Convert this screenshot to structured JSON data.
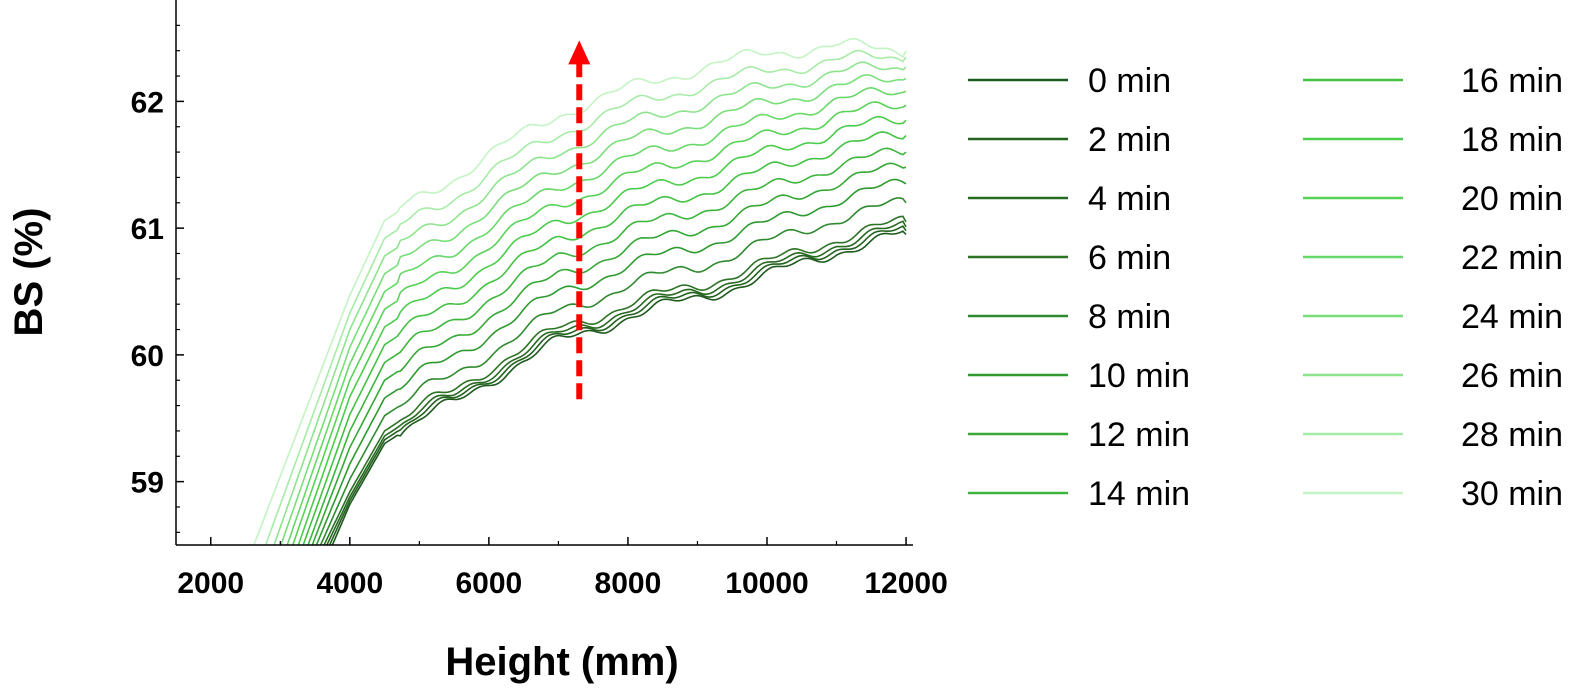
{
  "chart_data": {
    "type": "line",
    "xlabel": "Height (mm)",
    "ylabel": "BS (%)",
    "xlim": [
      1500,
      12100
    ],
    "ylim": [
      58.5,
      62.8
    ],
    "xticks": [
      2000,
      4000,
      6000,
      8000,
      10000,
      12000
    ],
    "yticks": [
      59,
      60,
      61,
      62
    ],
    "grid": false,
    "legend_position": "right",
    "annotation": {
      "type": "arrow",
      "direction": "up",
      "color": "#ff0000",
      "x": 7300,
      "y_from": 59.65,
      "y_to": 62.45
    },
    "series": [
      {
        "name": "0 min",
        "color": "#1f5a1f",
        "x": [
          3750,
          4000,
          4500,
          5000,
          5500,
          6000,
          7000,
          8000,
          9000,
          10000,
          11000,
          12000
        ],
        "values": [
          58.5,
          58.82,
          59.3,
          59.48,
          59.62,
          59.8,
          60.1,
          60.3,
          60.45,
          60.62,
          60.82,
          60.95
        ]
      },
      {
        "name": "2 min",
        "color": "#23621f",
        "x": [
          3710,
          4000,
          4500,
          5000,
          5500,
          6000,
          7000,
          8000,
          9000,
          10000,
          11000,
          12000
        ],
        "values": [
          58.5,
          58.85,
          59.33,
          59.51,
          59.65,
          59.83,
          60.13,
          60.33,
          60.48,
          60.65,
          60.85,
          60.98
        ]
      },
      {
        "name": "4 min",
        "color": "#286a22",
        "x": [
          3670,
          4000,
          4500,
          5000,
          5500,
          6000,
          7000,
          8000,
          9000,
          10000,
          11000,
          12000
        ],
        "values": [
          58.5,
          58.88,
          59.36,
          59.54,
          59.68,
          59.86,
          60.16,
          60.36,
          60.51,
          60.68,
          60.88,
          61.01
        ]
      },
      {
        "name": "6 min",
        "color": "#2d7326",
        "x": [
          3630,
          4000,
          4500,
          5000,
          5500,
          6000,
          7000,
          8000,
          9000,
          10000,
          11000,
          12000
        ],
        "values": [
          58.5,
          58.92,
          59.4,
          59.58,
          59.72,
          59.9,
          60.2,
          60.4,
          60.55,
          60.72,
          60.92,
          61.05
        ]
      },
      {
        "name": "8 min",
        "color": "#2f8a2f",
        "x": [
          3580,
          4000,
          4500,
          5000,
          5500,
          6000,
          7000,
          8000,
          9000,
          10000,
          11000,
          12000
        ],
        "values": [
          58.5,
          59.02,
          59.52,
          59.7,
          59.84,
          60.02,
          60.34,
          60.55,
          60.7,
          60.88,
          61.08,
          61.2
        ]
      },
      {
        "name": "10 min",
        "color": "#2f9a2f",
        "x": [
          3520,
          4000,
          4500,
          5000,
          5500,
          6000,
          7000,
          8000,
          9000,
          10000,
          11000,
          12000
        ],
        "values": [
          58.5,
          59.14,
          59.66,
          59.84,
          59.99,
          60.17,
          60.49,
          60.7,
          60.86,
          61.03,
          61.23,
          61.35
        ]
      },
      {
        "name": "12 min",
        "color": "#35a835",
        "x": [
          3460,
          4000,
          4500,
          5000,
          5500,
          6000,
          7000,
          8000,
          9000,
          10000,
          11000,
          12000
        ],
        "values": [
          58.5,
          59.27,
          59.8,
          59.98,
          60.13,
          60.31,
          60.63,
          60.84,
          61.0,
          61.17,
          61.37,
          61.48
        ]
      },
      {
        "name": "14 min",
        "color": "#3db53d",
        "x": [
          3400,
          4000,
          4500,
          5000,
          5500,
          6000,
          7000,
          8000,
          9000,
          10000,
          11000,
          12000
        ],
        "values": [
          58.5,
          59.4,
          59.94,
          60.12,
          60.27,
          60.45,
          60.77,
          60.98,
          61.14,
          61.31,
          61.5,
          61.6
        ]
      },
      {
        "name": "16 min",
        "color": "#44c244",
        "x": [
          3330,
          4000,
          4500,
          5000,
          5500,
          6000,
          7000,
          8000,
          9000,
          10000,
          11000,
          12000
        ],
        "values": [
          58.5,
          59.53,
          60.08,
          60.26,
          60.41,
          60.59,
          60.91,
          61.12,
          61.28,
          61.45,
          61.64,
          61.73
        ]
      },
      {
        "name": "18 min",
        "color": "#4ccc4c",
        "x": [
          3260,
          4000,
          4500,
          5000,
          5500,
          6000,
          7000,
          8000,
          9000,
          10000,
          11000,
          12000
        ],
        "values": [
          58.5,
          59.67,
          60.22,
          60.4,
          60.55,
          60.73,
          61.05,
          61.26,
          61.42,
          61.59,
          61.77,
          61.85
        ]
      },
      {
        "name": "20 min",
        "color": "#58d258",
        "x": [
          3180,
          4000,
          4500,
          5000,
          5500,
          6000,
          7000,
          8000,
          9000,
          10000,
          11000,
          12000
        ],
        "values": [
          58.5,
          59.8,
          60.36,
          60.54,
          60.69,
          60.87,
          61.19,
          61.4,
          61.56,
          61.72,
          61.89,
          61.97
        ]
      },
      {
        "name": "22 min",
        "color": "#68d868",
        "x": [
          3100,
          4000,
          4500,
          5000,
          5500,
          6000,
          7000,
          8000,
          9000,
          10000,
          11000,
          12000
        ],
        "values": [
          58.5,
          59.93,
          60.5,
          60.68,
          60.83,
          61.01,
          61.33,
          61.54,
          61.7,
          61.85,
          62.01,
          62.08
        ]
      },
      {
        "name": "24 min",
        "color": "#7ade7a",
        "x": [
          3010,
          4000,
          4500,
          5000,
          5500,
          6000,
          7000,
          8000,
          9000,
          10000,
          11000,
          12000
        ],
        "values": [
          58.5,
          60.06,
          60.64,
          60.82,
          60.97,
          61.15,
          61.47,
          61.68,
          61.84,
          61.98,
          62.12,
          62.18
        ]
      },
      {
        "name": "26 min",
        "color": "#8ee48e",
        "x": [
          2910,
          4000,
          4500,
          5000,
          5500,
          6000,
          7000,
          8000,
          9000,
          10000,
          11000,
          12000
        ],
        "values": [
          58.5,
          60.2,
          60.78,
          60.96,
          61.11,
          61.29,
          61.61,
          61.82,
          61.98,
          62.11,
          62.23,
          62.27
        ]
      },
      {
        "name": "28 min",
        "color": "#a6eca6",
        "x": [
          2790,
          4000,
          4500,
          5000,
          5500,
          6000,
          7000,
          8000,
          9000,
          10000,
          11000,
          12000
        ],
        "values": [
          58.5,
          60.33,
          60.92,
          61.1,
          61.25,
          61.43,
          61.75,
          61.96,
          62.12,
          62.24,
          62.33,
          62.35
        ]
      },
      {
        "name": "30 min",
        "color": "#c4f4c4",
        "x": [
          2620,
          4000,
          4500,
          5000,
          5500,
          6000,
          7000,
          8000,
          9000,
          10000,
          11000,
          12000
        ],
        "values": [
          58.5,
          60.47,
          61.06,
          61.24,
          61.4,
          61.58,
          61.9,
          62.1,
          62.26,
          62.38,
          62.44,
          62.4
        ]
      }
    ]
  }
}
